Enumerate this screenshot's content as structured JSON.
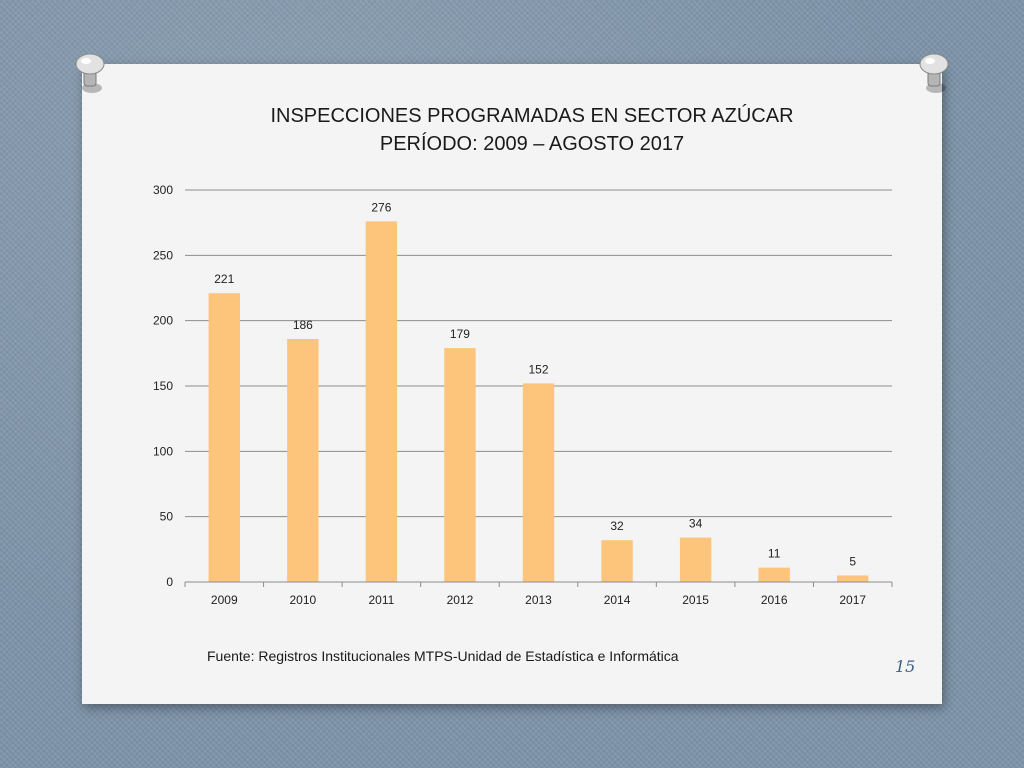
{
  "slide": {
    "title_line1": "INSPECCIONES PROGRAMADAS EN  SECTOR AZÚCAR",
    "title_line2": "PERÍODO: 2009 – AGOSTO 2017",
    "source": "Fuente: Registros Institucionales MTPS-Unidad de Estadística e Informática",
    "page_number": "15"
  },
  "colors": {
    "bar": "#fdc57c",
    "grid": "#8c8c8c",
    "page_number": "#3e5f7f"
  },
  "chart_data": {
    "type": "bar",
    "categories": [
      "2009",
      "2010",
      "2011",
      "2012",
      "2013",
      "2014",
      "2015",
      "2016",
      "2017"
    ],
    "values": [
      221,
      186,
      276,
      179,
      152,
      32,
      34,
      11,
      5
    ],
    "title": "INSPECCIONES PROGRAMADAS EN  SECTOR AZÚCAR\nPERÍODO: 2009 – AGOSTO 2017",
    "xlabel": "",
    "ylabel": "",
    "ylim": [
      0,
      300
    ],
    "yticks": [
      0,
      50,
      100,
      150,
      200,
      250,
      300
    ],
    "grid": true,
    "legend": "none",
    "data_labels": true
  }
}
